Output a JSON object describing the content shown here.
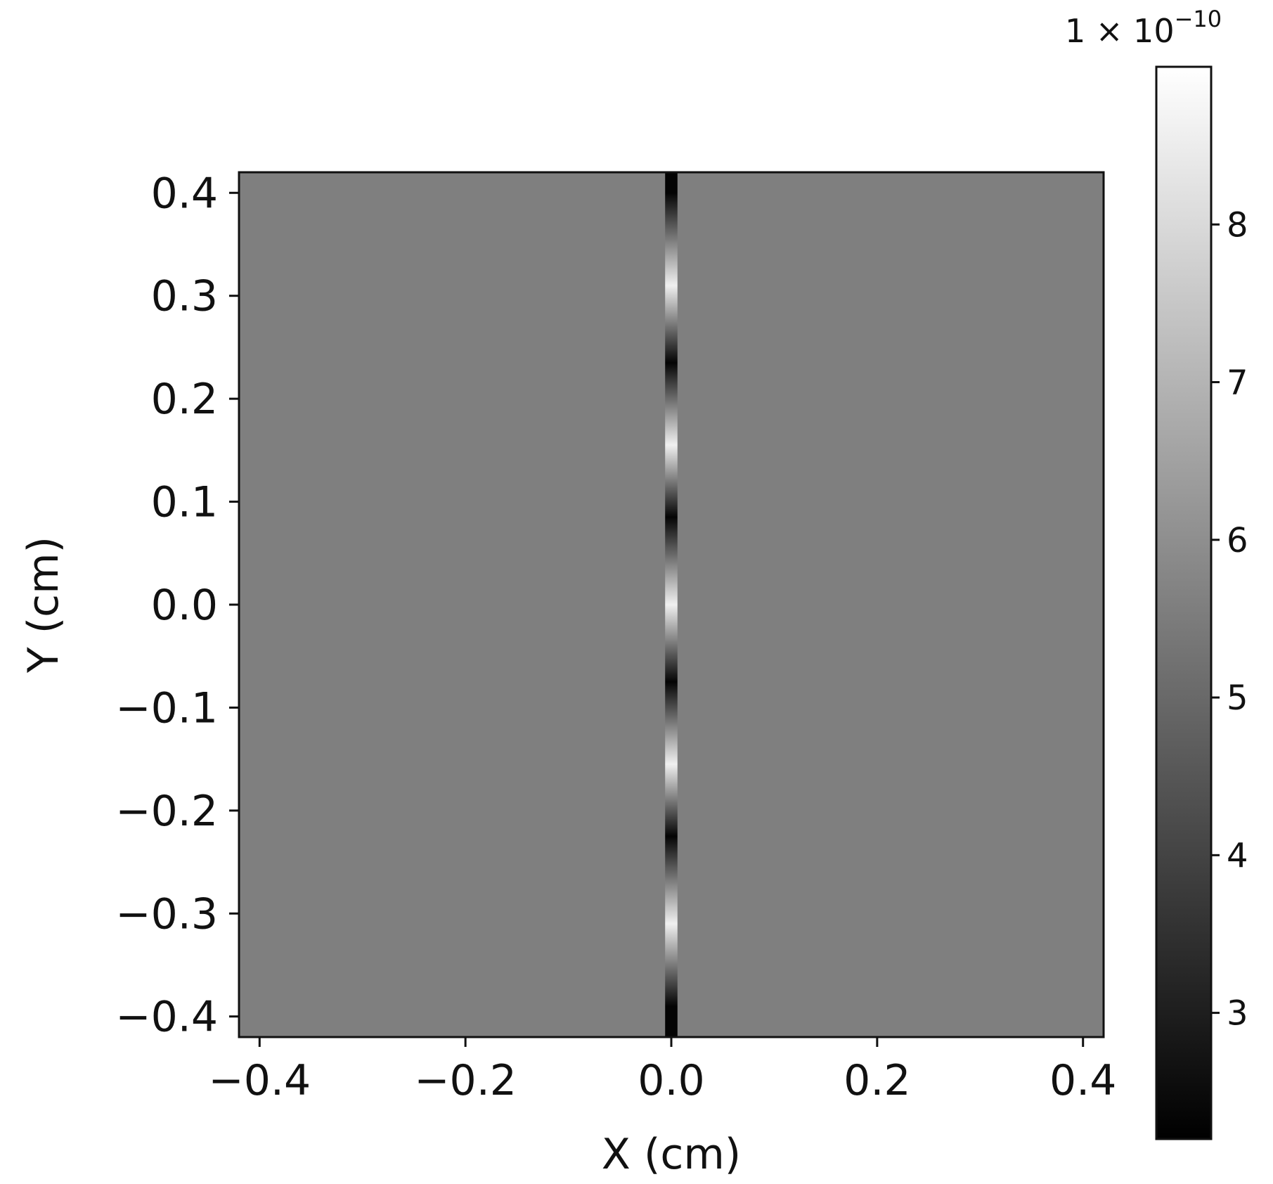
{
  "chart_data": {
    "type": "heatmap",
    "xlabel": "X (cm)",
    "ylabel": "Y (cm)",
    "xlim": [
      -0.42,
      0.42
    ],
    "ylim": [
      -0.42,
      0.42
    ],
    "x_ticks": [
      -0.4,
      -0.2,
      0.0,
      0.2,
      0.4
    ],
    "y_ticks": [
      -0.4,
      -0.3,
      -0.2,
      -0.1,
      0.0,
      0.1,
      0.2,
      0.3,
      0.4
    ],
    "x_tick_labels": [
      "−0.4",
      "−0.2",
      "0.0",
      "0.2",
      "0.4"
    ],
    "y_tick_labels": [
      "−0.4",
      "−0.3",
      "−0.2",
      "−0.1",
      "0.0",
      "0.1",
      "0.2",
      "0.3",
      "0.4"
    ],
    "colormap": "gray",
    "colorbar": {
      "range": [
        2.2,
        9.0
      ],
      "ticks": [
        3,
        4,
        5,
        6,
        7,
        8
      ],
      "tick_labels": [
        "3",
        "4",
        "5",
        "6",
        "7",
        "8"
      ],
      "multiplier_base": "1 × 10",
      "multiplier_exponent": "−10"
    },
    "background_value": 5.6,
    "stripe": {
      "x": 0.0,
      "width": 0.012,
      "segments": [
        {
          "y_center": 0.4,
          "value": 2.3
        },
        {
          "y_center": 0.31,
          "value": 8.6
        },
        {
          "y_center": 0.235,
          "value": 2.3
        },
        {
          "y_center": 0.155,
          "value": 8.6
        },
        {
          "y_center": 0.085,
          "value": 2.3
        },
        {
          "y_center": 0.0,
          "value": 8.6
        },
        {
          "y_center": -0.075,
          "value": 2.3
        },
        {
          "y_center": -0.155,
          "value": 8.6
        },
        {
          "y_center": -0.225,
          "value": 2.3
        },
        {
          "y_center": -0.31,
          "value": 8.6
        },
        {
          "y_center": -0.39,
          "value": 2.3
        }
      ]
    },
    "grid": false
  },
  "colors": {
    "background_field": "#7f7f7f",
    "axis": "#111111",
    "text": "#111111",
    "cmap_low": "#000000",
    "cmap_high": "#ffffff"
  }
}
